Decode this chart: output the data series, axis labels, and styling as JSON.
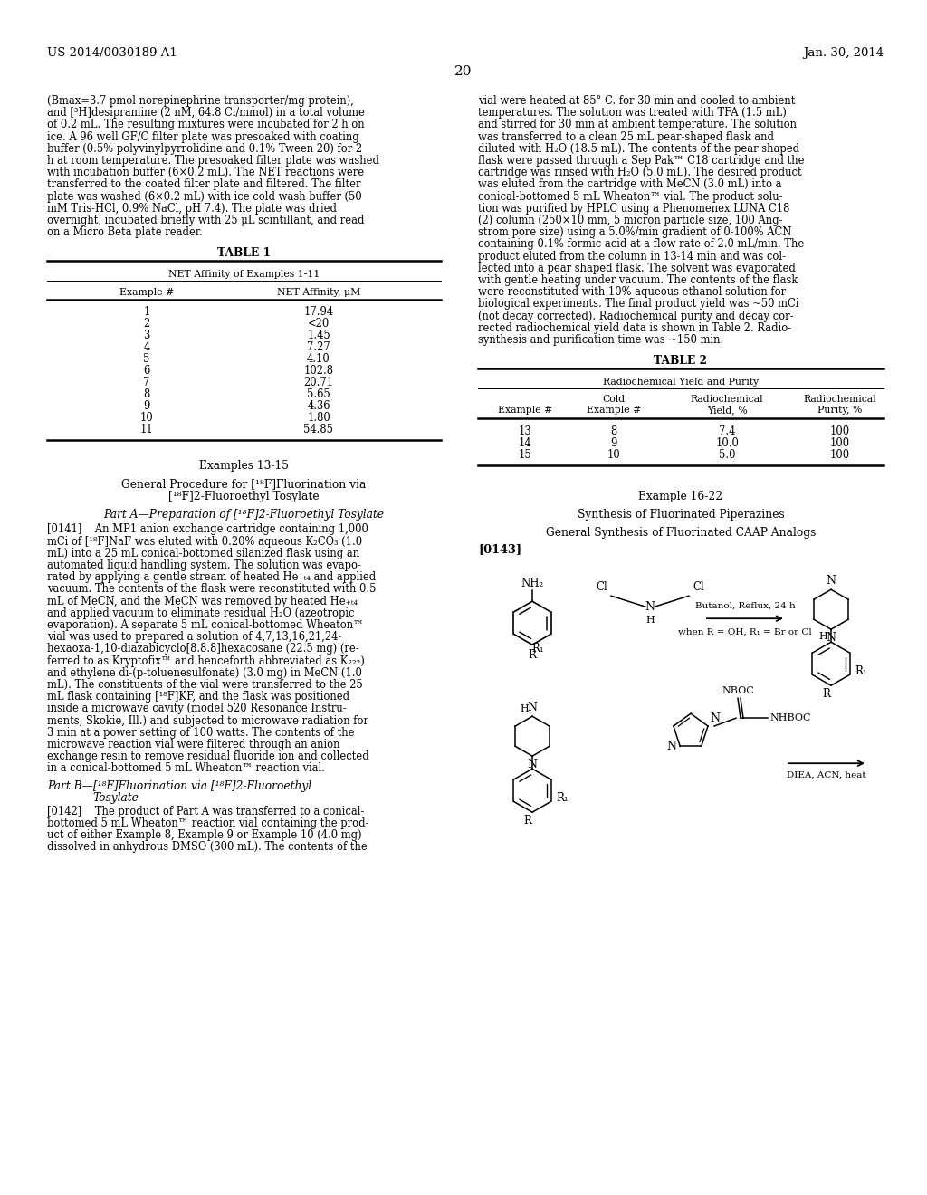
{
  "bg_color": "#ffffff",
  "header_left": "US 2014/0030189 A1",
  "header_right": "Jan. 30, 2014",
  "page_number": "20",
  "left_col_text": [
    "(Bmax=3.7 pmol norepinephrine transporter/mg protein),",
    "and [³H]desipramine (2 nM, 64.8 Ci/mmol) in a total volume",
    "of 0.2 mL. The resulting mixtures were incubated for 2 h on",
    "ice. A 96 well GF/C filter plate was presoaked with coating",
    "buffer (0.5% polyvinylpyrrolidine and 0.1% Tween 20) for 2",
    "h at room temperature. The presoaked filter plate was washed",
    "with incubation buffer (6×0.2 mL). The NET reactions were",
    "transferred to the coated filter plate and filtered. The filter",
    "plate was washed (6×0.2 mL) with ice cold wash buffer (50",
    "mM Tris-HCl, 0.9% NaCl, pH 7.4). The plate was dried",
    "overnight, incubated briefly with 25 μL scintillant, and read",
    "on a Micro Beta plate reader."
  ],
  "right_col_text": [
    "vial were heated at 85° C. for 30 min and cooled to ambient",
    "temperatures. The solution was treated with TFA (1.5 mL)",
    "and stirred for 30 min at ambient temperature. The solution",
    "was transferred to a clean 25 mL pear-shaped flask and",
    "diluted with H₂O (18.5 mL). The contents of the pear shaped",
    "flask were passed through a Sep Pak™ C18 cartridge and the",
    "cartridge was rinsed with H₂O (5.0 mL). The desired product",
    "was eluted from the cartridge with MeCN (3.0 mL) into a",
    "conical-bottomed 5 mL Wheaton™ vial. The product solu-",
    "tion was purified by HPLC using a Phenomenex LUNA C18",
    "(2) column (250×10 mm, 5 micron particle size, 100 Ang-",
    "strom pore size) using a 5.0%/min gradient of 0-100% ACN",
    "containing 0.1% formic acid at a flow rate of 2.0 mL/min. The",
    "product eluted from the column in 13-14 min and was col-",
    "lected into a pear shaped flask. The solvent was evaporated",
    "with gentle heating under vacuum. The contents of the flask",
    "were reconstituted with 10% aqueous ethanol solution for",
    "biological experiments. The final product yield was ~50 mCi",
    "(not decay corrected). Radiochemical purity and decay cor-",
    "rected radiochemical yield data is shown in Table 2. Radio-",
    "synthesis and purification time was ~150 min."
  ],
  "table1_title": "TABLE 1",
  "table1_subtitle": "NET Affinity of Examples 1-11",
  "table1_col1": "Example #",
  "table1_col2": "NET Affinity, μM",
  "table1_data": [
    [
      "1",
      "17.94"
    ],
    [
      "2",
      "<20"
    ],
    [
      "3",
      "1.45"
    ],
    [
      "4",
      "7.27"
    ],
    [
      "5",
      "4.10"
    ],
    [
      "6",
      "102.8"
    ],
    [
      "7",
      "20.71"
    ],
    [
      "8",
      "5.65"
    ],
    [
      "9",
      "4.36"
    ],
    [
      "10",
      "1.80"
    ],
    [
      "11",
      "54.85"
    ]
  ],
  "table2_title": "TABLE 2",
  "table2_subtitle": "Radiochemical Yield and Purity",
  "table2_col1": "Example #",
  "table2_col2_line1": "Cold",
  "table2_col2_line2": "Example #",
  "table2_col3_line1": "Radiochemical",
  "table2_col3_line2": "Yield, %",
  "table2_col4_line1": "Radiochemical",
  "table2_col4_line2": "Purity, %",
  "table2_data": [
    [
      "13",
      "8",
      "7.4",
      "100"
    ],
    [
      "14",
      "9",
      "10.0",
      "100"
    ],
    [
      "15",
      "10",
      "5.0",
      "100"
    ]
  ],
  "examples_13_15_header": "Examples 13-15",
  "general_proc_line1": "General Procedure for [¹⁸F]Fluorination via",
  "general_proc_line2": "[¹⁸F]2-Fluoroethyl Tosylate",
  "part_a_header": "Part A—Preparation of [¹⁸F]2-Fluoroethyl Tosylate",
  "para_0141_text": [
    "[0141]    An MP1 anion exchange cartridge containing 1,000",
    "mCi of [¹⁸F]NaF was eluted with 0.20% aqueous K₂CO₃ (1.0",
    "mL) into a 25 mL conical-bottomed silanized flask using an",
    "automated liquid handling system. The solution was evapo-",
    "rated by applying a gentle stream of heated He₊ₜ₄ and applied",
    "vacuum. The contents of the flask were reconstituted with 0.5",
    "mL of MeCN, and the MeCN was removed by heated He₊ₜ₄",
    "and applied vacuum to eliminate residual H₂O (azeotropic",
    "evaporation). A separate 5 mL conical-bottomed Wheaton™",
    "vial was used to prepared a solution of 4,7,13,16,21,24-",
    "hexaoxa-1,10-diazabicyclo[8.8.8]hexacosane (22.5 mg) (re-",
    "ferred to as Kryptofix™ and henceforth abbreviated as K₂₂₂)",
    "and ethylene di-(p-toluenesulfonate) (3.0 mg) in MeCN (1.0",
    "mL). The constituents of the vial were transferred to the 25",
    "mL flask containing [¹⁸F]KF, and the flask was positioned",
    "inside a microwave cavity (model 520 Resonance Instru-",
    "ments, Skokie, Ill.) and subjected to microwave radiation for",
    "3 min at a power setting of 100 watts. The contents of the",
    "microwave reaction vial were filtered through an anion",
    "exchange resin to remove residual fluoride ion and collected",
    "in a conical-bottomed 5 mL Wheaton™ reaction vial."
  ],
  "part_b_header_line1": "Part B—[¹⁸F]Fluorination via [¹⁸F]2-Fluoroethyl",
  "part_b_header_line2": "Tosylate",
  "para_0142_text": [
    "[0142]    The product of Part A was transferred to a conical-",
    "bottomed 5 mL Wheaton™ reaction vial containing the prod-",
    "uct of either Example 8, Example 9 or Example 10 (4.0 mg)",
    "dissolved in anhydrous DMSO (300 mL). The contents of the"
  ],
  "example_1622_header": "Example 16-22",
  "synth_header": "Synthesis of Fluorinated Piperazines",
  "general_synth_header": "General Synthesis of Fluorinated CAAP Analogs",
  "para_0143": "[0143]"
}
